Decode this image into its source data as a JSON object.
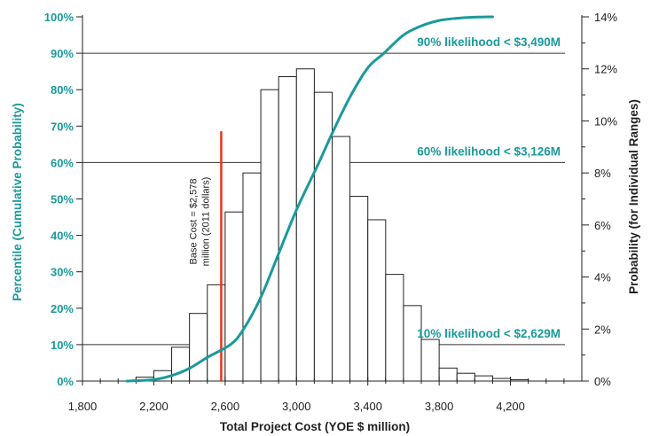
{
  "chart_data": {
    "type": "bar",
    "title": "",
    "xlabel": "Total Project Cost (YOE $ million)",
    "ylabel_left": "Percentile (Cumulative Probability)",
    "ylabel_right": "Probability (for Individual Ranges)",
    "xlim": [
      1800,
      4600
    ],
    "ylim_left": [
      0,
      100
    ],
    "ylim_right": [
      0,
      14
    ],
    "x_ticks": [
      1800,
      2200,
      2600,
      3000,
      3400,
      3800,
      4200
    ],
    "x_tick_labels": [
      "1,800",
      "2,200",
      "2,600",
      "3,000",
      "3,400",
      "3,800",
      "4,200"
    ],
    "left_ticks": [
      0,
      10,
      20,
      30,
      40,
      50,
      60,
      70,
      80,
      90,
      100
    ],
    "left_tick_labels": [
      "0%",
      "10%",
      "20%",
      "30%",
      "40%",
      "50%",
      "60%",
      "70%",
      "80%",
      "90%",
      "100%"
    ],
    "right_ticks": [
      0,
      2,
      4,
      6,
      8,
      10,
      12,
      14
    ],
    "right_tick_labels": [
      "0%",
      "2%",
      "4%",
      "6%",
      "8%",
      "10%",
      "12%",
      "14%"
    ],
    "histogram": {
      "bin_width": 100,
      "bin_start": [
        2100,
        2200,
        2300,
        2400,
        2500,
        2600,
        2700,
        2800,
        2900,
        3000,
        3100,
        3200,
        3300,
        3400,
        3500,
        3600,
        3700,
        3800,
        3900,
        4000,
        4100,
        4200
      ],
      "probability_percent": [
        0.15,
        0.4,
        1.3,
        2.6,
        3.7,
        6.5,
        8.0,
        11.2,
        11.7,
        12.0,
        11.1,
        9.4,
        7.1,
        6.2,
        4.1,
        2.9,
        1.6,
        0.5,
        0.3,
        0.2,
        0.1,
        0.05
      ]
    },
    "cumulative_curve": {
      "x": [
        2050,
        2200,
        2300,
        2400,
        2500,
        2629,
        2700,
        2800,
        2900,
        3000,
        3126,
        3200,
        3300,
        3400,
        3490,
        3600,
        3700,
        3800,
        3900,
        4000,
        4100
      ],
      "y": [
        0,
        0.4,
        1.5,
        3.5,
        6.5,
        10,
        14,
        23,
        35,
        47,
        60,
        68,
        78,
        86,
        90,
        95,
        97.5,
        99,
        99.6,
        99.9,
        100
      ]
    },
    "reference_lines": [
      {
        "percentile": 10,
        "label": "10% likelihood < $2,629M"
      },
      {
        "percentile": 60,
        "label": "60% likelihood < $3,126M"
      },
      {
        "percentile": 90,
        "label": "90% likelihood < $3,490M"
      }
    ],
    "base_cost": {
      "x": 2578,
      "top_percent": 9.6,
      "label_line1": "Base Cost = $2,578",
      "label_line2": "million (2011 dollars)"
    },
    "colors": {
      "curve": "#1a9a9a",
      "left_axis_text": "#1a9a9a",
      "base_line": "#e8351e",
      "bar_stroke": "#222222",
      "bar_fill": "#ffffff"
    }
  }
}
